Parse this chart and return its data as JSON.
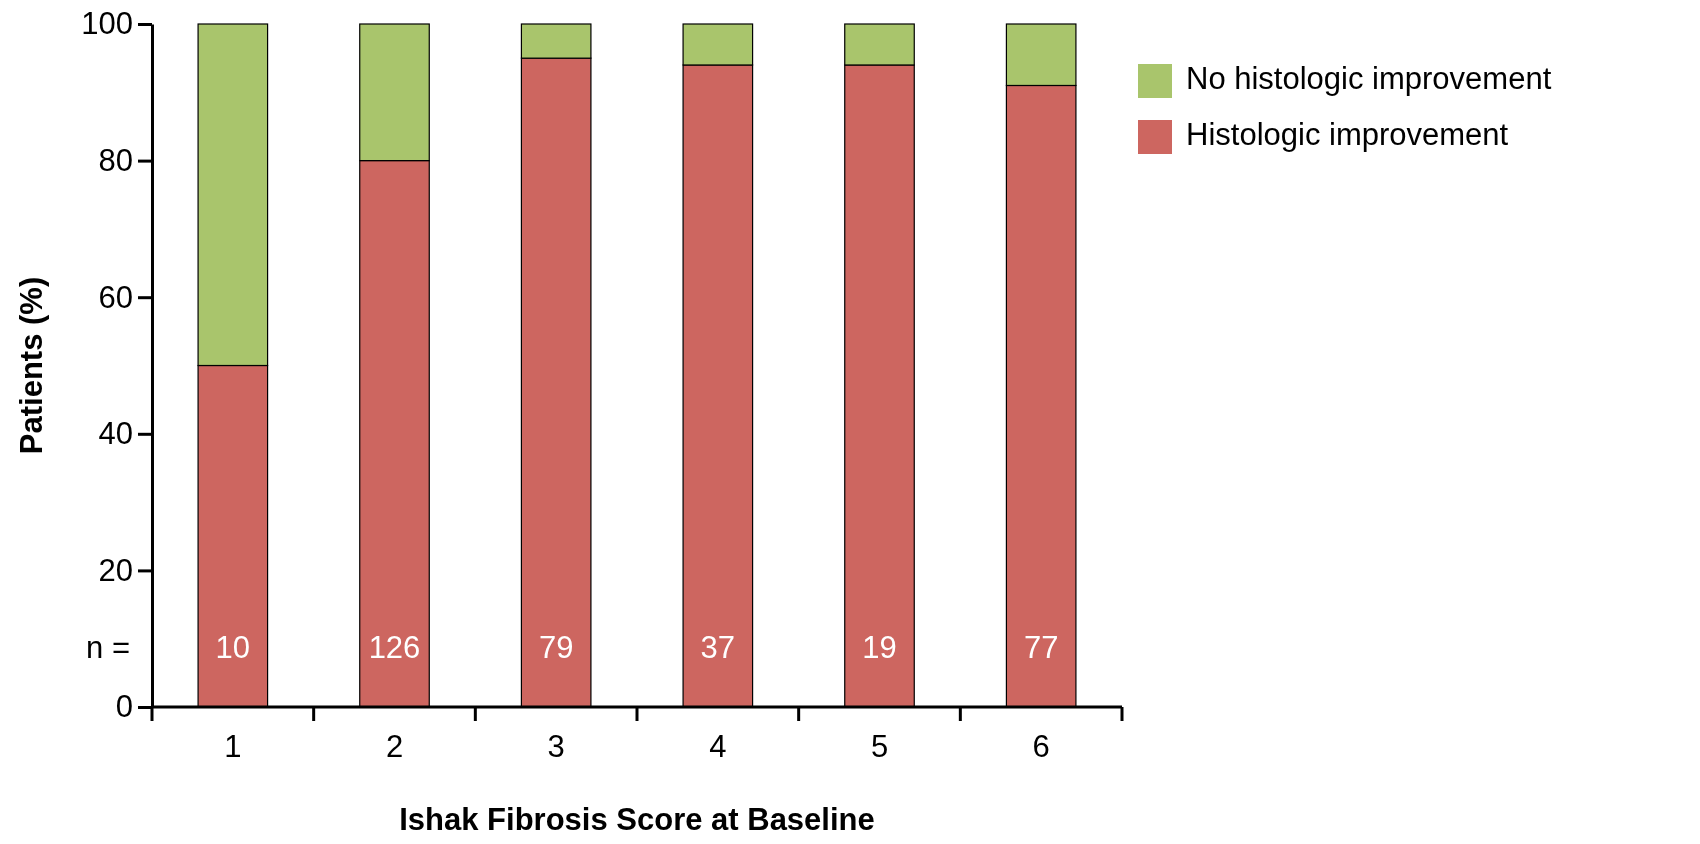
{
  "chart_data": {
    "type": "bar",
    "stacked": true,
    "xlabel": "Ishak Fibrosis Score at Baseline",
    "ylabel": "Patients (%)",
    "categories": [
      "1",
      "2",
      "3",
      "4",
      "5",
      "6"
    ],
    "series": [
      {
        "name": "Histologic improvement",
        "color": "#cd6660",
        "values": [
          50,
          80,
          95,
          94,
          94,
          91
        ]
      },
      {
        "name": "No histologic improvement",
        "color": "#a9c56c",
        "values": [
          50,
          20,
          5,
          6,
          6,
          9
        ]
      }
    ],
    "ylim": [
      0,
      100
    ],
    "yticks": [
      0,
      20,
      40,
      60,
      80,
      100
    ],
    "grid": false,
    "legend": "top right",
    "annotations": [
      "n =",
      "10",
      "126",
      "79",
      "37",
      "19",
      "77"
    ]
  }
}
